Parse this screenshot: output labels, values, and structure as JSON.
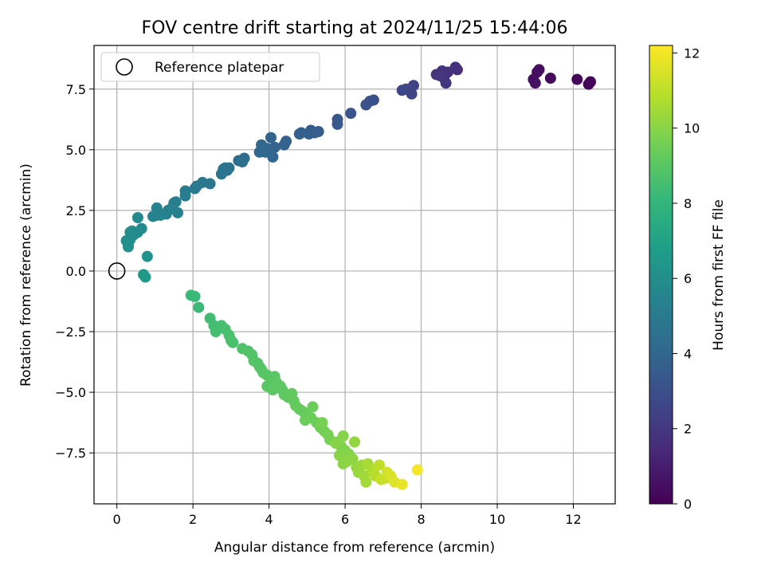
{
  "chart_data": {
    "type": "scatter",
    "title": "FOV centre drift starting at 2024/11/25 15:44:06",
    "xlabel": "Angular distance from reference (arcmin)",
    "ylabel": "Rotation from reference (arcmin)",
    "xlim": [
      -0.6,
      13.1
    ],
    "ylim": [
      -9.6,
      9.3
    ],
    "xticks": [
      0,
      2,
      4,
      6,
      8,
      10,
      12
    ],
    "xtick_labels": [
      "0",
      "2",
      "4",
      "6",
      "8",
      "10",
      "12"
    ],
    "yticks": [
      -7.5,
      -5.0,
      -2.5,
      0.0,
      2.5,
      5.0,
      7.5
    ],
    "ytick_labels": [
      "−7.5",
      "−5.0",
      "−2.5",
      "0.0",
      "2.5",
      "5.0",
      "7.5"
    ],
    "grid": true,
    "legend": {
      "position": "top-left",
      "entries": [
        "Reference platepar"
      ]
    },
    "reference_point": {
      "x": 0,
      "y": 0
    },
    "colorbar": {
      "label": "Hours from first FF file",
      "colormap": "viridis",
      "range": [
        0,
        12.2
      ],
      "ticks": [
        0,
        2,
        4,
        6,
        8,
        10,
        12
      ],
      "tick_labels": [
        "0",
        "2",
        "4",
        "6",
        "8",
        "10",
        "12"
      ]
    },
    "colors": {
      "viridis": [
        "#440154",
        "#482878",
        "#3e4989",
        "#31688e",
        "#26828e",
        "#1f9e89",
        "#35b779",
        "#6ece58",
        "#b5de2b",
        "#fde725"
      ]
    },
    "points": [
      [
        12.45,
        7.8,
        0.1
      ],
      [
        12.4,
        7.7,
        0.15
      ],
      [
        12.1,
        7.9,
        0.2
      ],
      [
        11.4,
        7.95,
        0.35
      ],
      [
        11.05,
        8.2,
        0.4
      ],
      [
        11.1,
        8.3,
        0.45
      ],
      [
        10.95,
        7.9,
        0.5
      ],
      [
        11.0,
        7.75,
        0.55
      ],
      [
        8.95,
        8.3,
        1.6
      ],
      [
        8.9,
        8.4,
        1.65
      ],
      [
        8.7,
        8.2,
        1.7
      ],
      [
        8.6,
        7.95,
        1.75
      ],
      [
        8.55,
        8.25,
        1.8
      ],
      [
        8.4,
        8.1,
        1.85
      ],
      [
        8.65,
        7.75,
        1.9
      ],
      [
        8.5,
        8.05,
        1.95
      ],
      [
        7.8,
        7.65,
        2.5
      ],
      [
        7.75,
        7.3,
        2.55
      ],
      [
        7.6,
        7.5,
        2.6
      ],
      [
        7.5,
        7.45,
        2.65
      ],
      [
        6.75,
        7.05,
        3.0
      ],
      [
        6.65,
        7.0,
        3.05
      ],
      [
        6.55,
        6.85,
        3.1
      ],
      [
        6.15,
        6.5,
        3.25
      ],
      [
        5.8,
        6.25,
        3.35
      ],
      [
        5.8,
        6.05,
        3.4
      ],
      [
        5.3,
        5.75,
        3.55
      ],
      [
        5.1,
        5.8,
        3.6
      ],
      [
        5.2,
        5.7,
        3.62
      ],
      [
        5.05,
        5.65,
        3.65
      ],
      [
        4.85,
        5.7,
        3.7
      ],
      [
        4.8,
        5.65,
        3.72
      ],
      [
        4.45,
        5.35,
        3.8
      ],
      [
        4.4,
        5.2,
        3.85
      ],
      [
        4.15,
        5.1,
        3.9
      ],
      [
        4.05,
        5.5,
        3.92
      ],
      [
        4.05,
        4.9,
        3.95
      ],
      [
        3.95,
        5.05,
        3.97
      ],
      [
        4.1,
        4.7,
        4.0
      ],
      [
        3.9,
        4.9,
        4.05
      ],
      [
        3.8,
        5.2,
        4.08
      ],
      [
        3.75,
        4.9,
        4.1
      ],
      [
        3.35,
        4.65,
        4.3
      ],
      [
        3.2,
        4.55,
        4.35
      ],
      [
        3.3,
        4.5,
        4.4
      ],
      [
        2.95,
        4.25,
        4.55
      ],
      [
        2.9,
        4.15,
        4.6
      ],
      [
        2.85,
        4.25,
        4.62
      ],
      [
        2.75,
        4.0,
        4.65
      ],
      [
        2.8,
        4.2,
        4.68
      ],
      [
        2.45,
        3.6,
        4.85
      ],
      [
        2.25,
        3.65,
        4.9
      ],
      [
        2.1,
        3.5,
        4.95
      ],
      [
        2.05,
        3.4,
        5.0
      ],
      [
        1.8,
        3.3,
        5.05
      ],
      [
        1.8,
        3.1,
        5.1
      ],
      [
        1.55,
        2.85,
        5.25
      ],
      [
        1.5,
        2.8,
        5.28
      ],
      [
        1.45,
        2.6,
        5.3
      ],
      [
        1.6,
        2.4,
        5.32
      ],
      [
        1.35,
        2.5,
        5.35
      ],
      [
        1.3,
        2.35,
        5.38
      ],
      [
        1.2,
        2.35,
        5.4
      ],
      [
        1.15,
        2.3,
        5.42
      ],
      [
        1.1,
        2.4,
        5.44
      ],
      [
        1.05,
        2.3,
        5.46
      ],
      [
        1.05,
        2.6,
        5.48
      ],
      [
        0.95,
        2.25,
        5.5
      ],
      [
        0.55,
        2.2,
        5.7
      ],
      [
        0.65,
        1.75,
        5.75
      ],
      [
        0.55,
        1.6,
        5.8
      ],
      [
        0.45,
        1.5,
        5.85
      ],
      [
        0.4,
        1.65,
        5.88
      ],
      [
        0.35,
        1.6,
        5.9
      ],
      [
        0.35,
        1.3,
        5.93
      ],
      [
        0.3,
        1.2,
        5.96
      ],
      [
        0.25,
        1.25,
        6.0
      ],
      [
        0.3,
        1.1,
        6.05
      ],
      [
        0.3,
        1.0,
        6.08
      ],
      [
        0.8,
        0.6,
        6.3
      ],
      [
        0.7,
        -0.15,
        6.5
      ],
      [
        0.75,
        -0.25,
        6.55
      ],
      [
        1.95,
        -1.0,
        8.2
      ],
      [
        2.05,
        -1.05,
        8.25
      ],
      [
        2.15,
        -1.5,
        8.3
      ],
      [
        2.45,
        -1.95,
        8.4
      ],
      [
        2.55,
        -2.25,
        8.45
      ],
      [
        2.65,
        -2.3,
        8.5
      ],
      [
        2.75,
        -2.25,
        8.52
      ],
      [
        2.6,
        -2.5,
        8.55
      ],
      [
        2.85,
        -2.4,
        8.58
      ],
      [
        2.95,
        -2.65,
        8.6
      ],
      [
        3.0,
        -2.85,
        8.63
      ],
      [
        3.05,
        -2.95,
        8.65
      ],
      [
        3.3,
        -3.2,
        8.75
      ],
      [
        3.45,
        -3.3,
        8.8
      ],
      [
        3.55,
        -3.45,
        8.82
      ],
      [
        3.6,
        -3.7,
        8.85
      ],
      [
        3.7,
        -3.8,
        8.88
      ],
      [
        3.75,
        -3.95,
        8.9
      ],
      [
        3.8,
        -4.05,
        8.92
      ],
      [
        3.85,
        -4.2,
        8.95
      ],
      [
        3.95,
        -4.3,
        8.97
      ],
      [
        4.05,
        -4.45,
        9.0
      ],
      [
        4.15,
        -4.35,
        9.02
      ],
      [
        4.2,
        -4.6,
        9.05
      ],
      [
        4.3,
        -4.75,
        9.08
      ],
      [
        4.35,
        -4.9,
        9.1
      ],
      [
        4.4,
        -5.1,
        9.12
      ],
      [
        4.5,
        -5.2,
        9.15
      ],
      [
        3.95,
        -4.75,
        9.0
      ],
      [
        4.1,
        -4.9,
        9.05
      ],
      [
        4.6,
        -5.05,
        9.2
      ],
      [
        4.65,
        -5.35,
        9.22
      ],
      [
        4.7,
        -5.55,
        9.25
      ],
      [
        4.8,
        -5.7,
        9.28
      ],
      [
        4.9,
        -5.8,
        9.3
      ],
      [
        5.0,
        -5.9,
        9.33
      ],
      [
        5.1,
        -6.05,
        9.35
      ],
      [
        4.95,
        -6.15,
        9.38
      ],
      [
        5.15,
        -5.6,
        9.4
      ],
      [
        5.25,
        -6.25,
        9.45
      ],
      [
        5.35,
        -6.45,
        9.5
      ],
      [
        5.45,
        -6.6,
        9.55
      ],
      [
        5.55,
        -6.75,
        9.6
      ],
      [
        5.6,
        -6.95,
        9.65
      ],
      [
        5.4,
        -6.25,
        9.68
      ],
      [
        5.8,
        -7.05,
        9.75
      ],
      [
        5.9,
        -7.25,
        9.8
      ],
      [
        6.0,
        -7.4,
        9.85
      ],
      [
        6.1,
        -7.55,
        9.9
      ],
      [
        5.95,
        -6.8,
        9.92
      ],
      [
        5.75,
        -7.1,
        9.95
      ],
      [
        5.85,
        -7.6,
        9.97
      ],
      [
        5.95,
        -7.95,
        10.0
      ],
      [
        6.05,
        -7.85,
        10.05
      ],
      [
        6.2,
        -7.75,
        10.1
      ],
      [
        6.25,
        -7.05,
        10.15
      ],
      [
        6.3,
        -8.1,
        10.2
      ],
      [
        6.35,
        -8.3,
        10.3
      ],
      [
        6.45,
        -8.0,
        10.35
      ],
      [
        6.5,
        -8.45,
        10.4
      ],
      [
        6.55,
        -8.7,
        10.5
      ],
      [
        6.6,
        -7.95,
        10.6
      ],
      [
        6.7,
        -8.2,
        10.7
      ],
      [
        6.75,
        -8.3,
        10.8
      ],
      [
        6.8,
        -8.45,
        10.9
      ],
      [
        6.9,
        -8.0,
        11.0
      ],
      [
        6.95,
        -8.6,
        11.1
      ],
      [
        7.05,
        -8.55,
        11.2
      ],
      [
        7.1,
        -8.3,
        11.4
      ],
      [
        7.2,
        -8.45,
        11.5
      ],
      [
        7.3,
        -8.7,
        11.6
      ],
      [
        7.5,
        -8.8,
        11.8
      ],
      [
        7.9,
        -8.2,
        12.0
      ]
    ]
  }
}
